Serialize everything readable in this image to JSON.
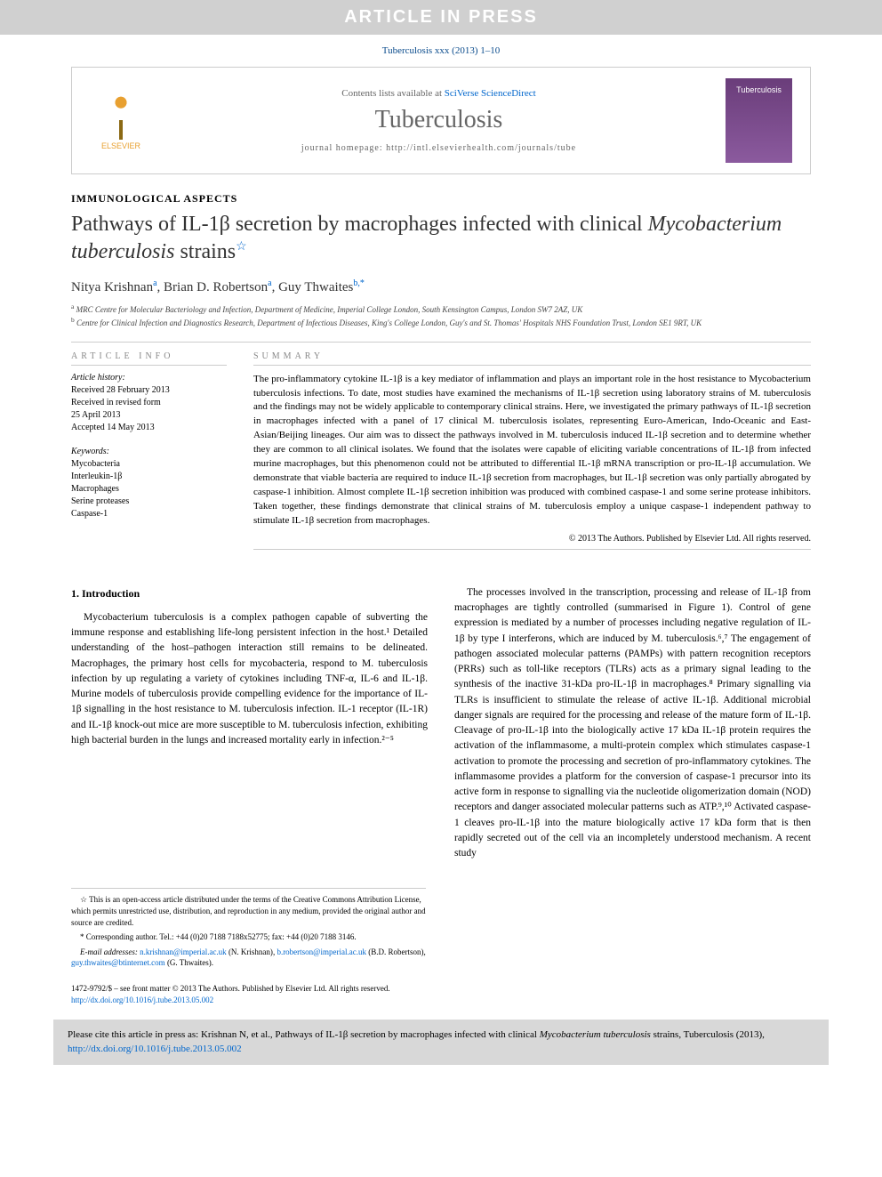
{
  "banner": "ARTICLE IN PRESS",
  "citation_line": "Tuberculosis xxx (2013) 1–10",
  "header": {
    "elsevier_label": "ELSEVIER",
    "contents_prefix": "Contents lists available at ",
    "contents_link": "SciVerse ScienceDirect",
    "journal_name": "Tuberculosis",
    "homepage_prefix": "journal homepage: ",
    "homepage_url": "http://intl.elsevierhealth.com/journals/tube",
    "cover_label": "Tuberculosis"
  },
  "article": {
    "section_label": "IMMUNOLOGICAL ASPECTS",
    "title_part1": "Pathways of IL-1β secretion by macrophages infected with clinical ",
    "title_italic": "Mycobacterium tuberculosis",
    "title_part2": " strains",
    "title_star": "☆",
    "authors": [
      {
        "name": "Nitya Krishnan",
        "aff": "a"
      },
      {
        "name": "Brian D. Robertson",
        "aff": "a"
      },
      {
        "name": "Guy Thwaites",
        "aff": "b,",
        "corr": "*"
      }
    ],
    "affiliations": [
      {
        "sup": "a",
        "text": "MRC Centre for Molecular Bacteriology and Infection, Department of Medicine, Imperial College London, South Kensington Campus, London SW7 2AZ, UK"
      },
      {
        "sup": "b",
        "text": "Centre for Clinical Infection and Diagnostics Research, Department of Infectious Diseases, King's College London, Guy's and St. Thomas' Hospitals NHS Foundation Trust, London SE1 9RT, UK"
      }
    ]
  },
  "info": {
    "header": "ARTICLE INFO",
    "history_label": "Article history:",
    "history": [
      "Received 28 February 2013",
      "Received in revised form",
      "25 April 2013",
      "Accepted 14 May 2013"
    ],
    "keywords_label": "Keywords:",
    "keywords": [
      "Mycobacteria",
      "Interleukin-1β",
      "Macrophages",
      "Serine proteases",
      "Caspase-1"
    ]
  },
  "summary": {
    "header": "SUMMARY",
    "text": "The pro-inflammatory cytokine IL-1β is a key mediator of inflammation and plays an important role in the host resistance to Mycobacterium tuberculosis infections. To date, most studies have examined the mechanisms of IL-1β secretion using laboratory strains of M. tuberculosis and the findings may not be widely applicable to contemporary clinical strains. Here, we investigated the primary pathways of IL-1β secretion in macrophages infected with a panel of 17 clinical M. tuberculosis isolates, representing Euro-American, Indo-Oceanic and East-Asian/Beijing lineages. Our aim was to dissect the pathways involved in M. tuberculosis induced IL-1β secretion and to determine whether they are common to all clinical isolates. We found that the isolates were capable of eliciting variable concentrations of IL-1β from infected murine macrophages, but this phenomenon could not be attributed to differential IL-1β mRNA transcription or pro-IL-1β accumulation. We demonstrate that viable bacteria are required to induce IL-1β secretion from macrophages, but IL-1β secretion was only partially abrogated by caspase-1 inhibition. Almost complete IL-1β secretion inhibition was produced with combined caspase-1 and some serine protease inhibitors. Taken together, these findings demonstrate that clinical strains of M. tuberculosis employ a unique caspase-1 independent pathway to stimulate IL-1β secretion from macrophages.",
    "copyright": "© 2013 The Authors. Published by Elsevier Ltd. All rights reserved."
  },
  "body": {
    "section_heading": "1. Introduction",
    "para1": "Mycobacterium tuberculosis is a complex pathogen capable of subverting the immune response and establishing life-long persistent infection in the host.¹ Detailed understanding of the host–pathogen interaction still remains to be delineated. Macrophages, the primary host cells for mycobacteria, respond to M. tuberculosis infection by up regulating a variety of cytokines including TNF-α, IL-6 and IL-1β. Murine models of tuberculosis provide compelling evidence for the importance of IL-1β signalling in the host resistance to M. tuberculosis infection. IL-1 receptor (IL-1R) and IL-1β knock-out mice are more susceptible to M. tuberculosis infection, exhibiting high bacterial burden in the lungs and increased mortality early in infection.²⁻⁵",
    "para2": "The processes involved in the transcription, processing and release of IL-1β from macrophages are tightly controlled (summarised in Figure 1). Control of gene expression is mediated by a number of processes including negative regulation of IL-1β by type I interferons, which are induced by M. tuberculosis.⁶,⁷ The engagement of pathogen associated molecular patterns (PAMPs) with pattern recognition receptors (PRRs) such as toll-like receptors (TLRs) acts as a primary signal leading to the synthesis of the inactive 31-kDa pro-IL-1β in macrophages.⁸ Primary signalling via TLRs is insufficient to stimulate the release of active IL-1β. Additional microbial danger signals are required for the processing and release of the mature form of IL-1β. Cleavage of pro-IL-1β into the biologically active 17 kDa IL-1β protein requires the activation of the inflammasome, a multi-protein complex which stimulates caspase-1 activation to promote the processing and secretion of pro-inflammatory cytokines. The inflammasome provides a platform for the conversion of caspase-1 precursor into its active form in response to signalling via the nucleotide oligomerization domain (NOD) receptors and danger associated molecular patterns such as ATP.⁹,¹⁰ Activated caspase-1 cleaves pro-IL-1β into the mature biologically active 17 kDa form that is then rapidly secreted out of the cell via an incompletely understood mechanism. A recent study"
  },
  "footnotes": {
    "star": "☆ This is an open-access article distributed under the terms of the Creative Commons Attribution License, which permits unrestricted use, distribution, and reproduction in any medium, provided the original author and source are credited.",
    "corr": "* Corresponding author. Tel.: +44 (0)20 7188 7188x52775; fax: +44 (0)20 7188 3146.",
    "email_label": "E-mail addresses: ",
    "emails": [
      {
        "addr": "n.krishnan@imperial.ac.uk",
        "name": "(N. Krishnan)"
      },
      {
        "addr": "b.robertson@imperial.ac.uk",
        "name": "(B.D. Robertson)"
      },
      {
        "addr": "guy.thwaites@btinternet.com",
        "name": "(G. Thwaites)"
      }
    ]
  },
  "footer": {
    "issn_line": "1472-9792/$ – see front matter © 2013 The Authors. Published by Elsevier Ltd. All rights reserved.",
    "doi": "http://dx.doi.org/10.1016/j.tube.2013.05.002"
  },
  "citebox": {
    "prefix": "Please cite this article in press as: Krishnan N, et al., Pathways of IL-1β secretion by macrophages infected with clinical ",
    "italic": "Mycobacterium tuberculosis",
    "suffix": " strains, Tuberculosis (2013), ",
    "doi": "http://dx.doi.org/10.1016/j.tube.2013.05.002"
  },
  "colors": {
    "banner_bg": "#d0d0d0",
    "banner_text": "#ffffff",
    "link": "#0066cc",
    "citation": "#0a4b8c",
    "journal": "#666666",
    "citebox_bg": "#d8d8d8",
    "cover_bg": "#6a3d7a",
    "elsevier": "#e8a030"
  }
}
